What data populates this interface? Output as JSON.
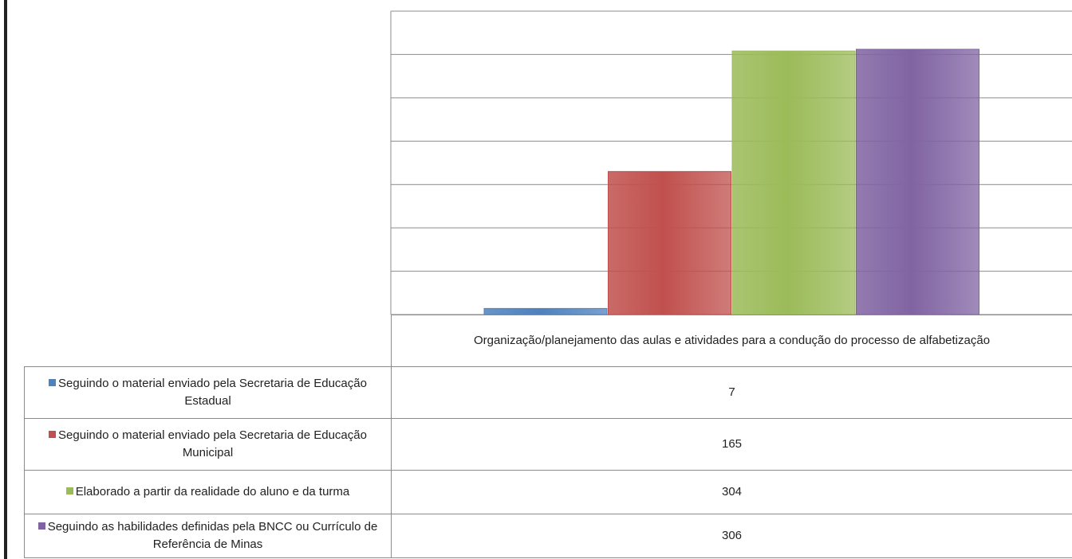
{
  "chart_data": {
    "type": "bar",
    "categories": [
      "Organização/planejamento das aulas e atividades para a condução do processo de alfabetização"
    ],
    "series": [
      {
        "name": "Seguindo o material enviado pela Secretaria de Educação Estadual",
        "color": "#4f81bd",
        "values": [
          7
        ]
      },
      {
        "name": "Seguindo o material enviado pela Secretaria de Educação Municipal",
        "color": "#c0504d",
        "values": [
          165
        ]
      },
      {
        "name": "Elaborado a partir da realidade do aluno e da turma",
        "color": "#9bbb59",
        "values": [
          304
        ]
      },
      {
        "name": "Seguindo as habilidades definidas pela BNCC ou Currículo de Referência de Minas",
        "color": "#8064a2",
        "values": [
          306
        ]
      }
    ],
    "ylim": [
      0,
      350
    ],
    "yticks": [
      0,
      50,
      100,
      150,
      200,
      250,
      300,
      350
    ],
    "grid": true
  }
}
